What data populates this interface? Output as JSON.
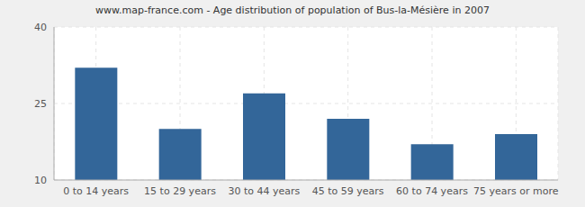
{
  "chart_data": {
    "type": "bar",
    "title": "www.map-france.com - Age distribution of population of Bus-la-Mésière in 2007",
    "categories": [
      "0 to 14 years",
      "15 to 29 years",
      "30 to 44 years",
      "45 to 59 years",
      "60 to 74 years",
      "75 years or more"
    ],
    "values": [
      32,
      20,
      27,
      22,
      17,
      19
    ],
    "color": "#336699",
    "ylim": [
      10,
      40
    ],
    "yticks": [
      10,
      25,
      40
    ],
    "grid": true
  }
}
